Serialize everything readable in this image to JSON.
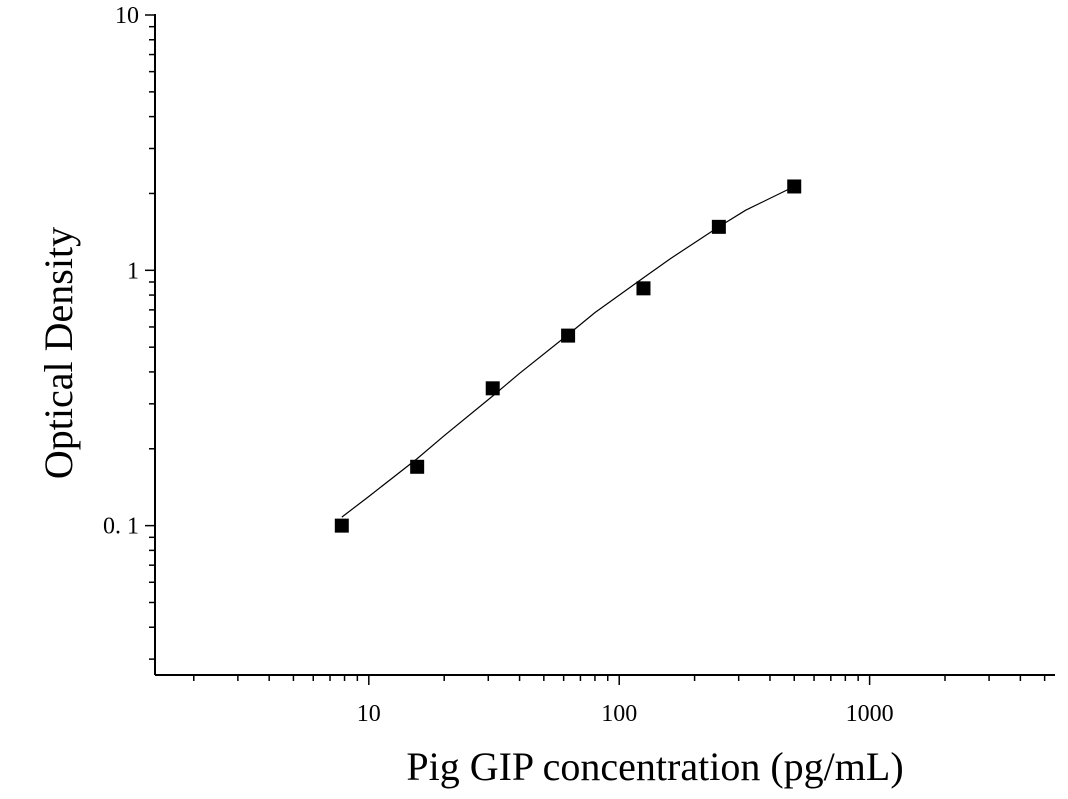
{
  "chart_data": {
    "type": "scatter",
    "title": "",
    "xlabel": "Pig GIP concentration (pg/mL)",
    "ylabel": "Optical Density",
    "xscale": "log",
    "yscale": "log",
    "xlim": [
      1.4,
      5500
    ],
    "ylim": [
      0.026,
      10
    ],
    "x_ticks": [
      {
        "value": 10,
        "label": "10"
      },
      {
        "value": 100,
        "label": "100"
      },
      {
        "value": 1000,
        "label": "1000"
      }
    ],
    "y_ticks": [
      {
        "value": 0.1,
        "label": "0. 1"
      },
      {
        "value": 1,
        "label": "1"
      },
      {
        "value": 10,
        "label": "10"
      }
    ],
    "grid": false,
    "legend": "none",
    "marker": "square",
    "color": "#000000",
    "series": [
      {
        "x": [
          7.8,
          15.6,
          31.25,
          62.5,
          125,
          250,
          500
        ],
        "y": [
          0.1,
          0.17,
          0.345,
          0.555,
          0.85,
          1.48,
          2.13
        ]
      }
    ],
    "fit_curve": {
      "x": [
        7.8,
        10,
        15.6,
        20,
        31.25,
        40,
        62.5,
        80,
        125,
        160,
        250,
        320,
        500
      ],
      "y": [
        0.108,
        0.13,
        0.183,
        0.225,
        0.322,
        0.395,
        0.56,
        0.683,
        0.935,
        1.11,
        1.48,
        1.72,
        2.13
      ]
    }
  }
}
